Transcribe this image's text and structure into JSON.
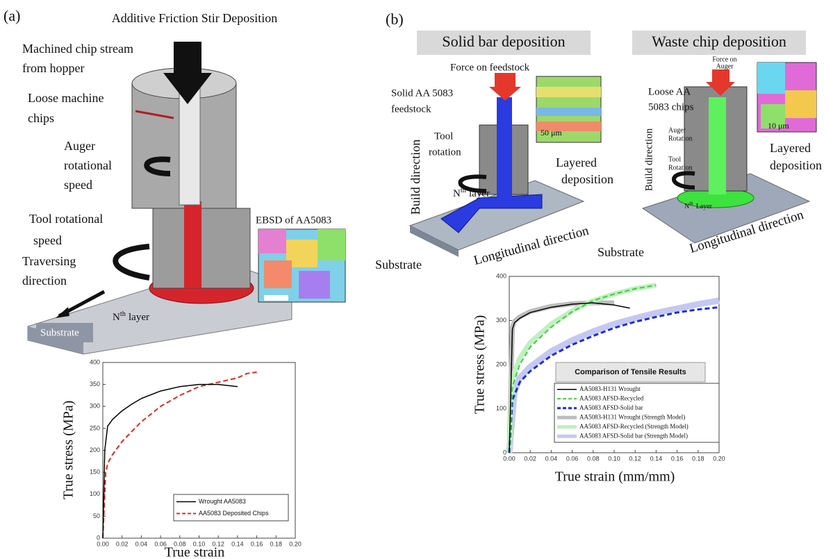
{
  "panel_a": {
    "label": "(a)",
    "title": "Additive Friction Stir Deposition",
    "chip_stream": [
      "Machined chip stream",
      "from hopper"
    ],
    "loose_chips": [
      "Loose machine",
      "chips"
    ],
    "auger_speed": [
      "Auger",
      "rotational",
      "speed"
    ],
    "tool_speed": [
      "Tool rotational",
      "speed"
    ],
    "traversing": [
      "Traversing",
      "direction"
    ],
    "substrate": "Substrate",
    "nth_layer": [
      "N",
      "th",
      "layer"
    ],
    "ebsd": "EBSD of AA5083"
  },
  "panel_b": {
    "label": "(b)",
    "solid_title": "Solid bar deposition",
    "waste_title": "Waste chip deposition",
    "force_feedstock": "Force on feedstock",
    "solid_feedstock": [
      "Solid AA 5083",
      "feedstock"
    ],
    "tool_rotation": [
      "Tool",
      "rotation"
    ],
    "build_direction_1": "Build direction",
    "nth_layer_1": [
      "N",
      "th",
      "layer"
    ],
    "layered_1": [
      "Layered",
      "deposition"
    ],
    "substrate_1": "Substrate",
    "longitudinal_1": "Longitudinal direction",
    "scale_1": "50 μm",
    "force_auger": [
      "Force on",
      "Auger"
    ],
    "loose_chips": [
      "Loose AA",
      "5083 chips"
    ],
    "auger_rotation": [
      "Auger",
      "Rotation"
    ],
    "tool_rotation_2": [
      "Tool",
      "Rotation"
    ],
    "build_direction_2": "Build direction",
    "layered_2": [
      "Layered",
      "deposition"
    ],
    "nth_layer_2": [
      "N",
      "th",
      "Layer"
    ],
    "substrate_2": "Substrate",
    "longitudinal_2": "Longitudinal direction",
    "scale_2": "10 μm"
  },
  "chart_data": [
    {
      "type": "line",
      "x_label": "True strain",
      "y_label": "True stress (MPa)",
      "xlim": [
        0,
        0.2
      ],
      "ylim": [
        0,
        400
      ],
      "xticks": [
        {
          "value": 0,
          "label": "0.00"
        },
        {
          "value": 0.02,
          "label": "0.02"
        },
        {
          "value": 0.04,
          "label": "0.04"
        },
        {
          "value": 0.06,
          "label": "0.06"
        },
        {
          "value": 0.08,
          "label": "0.08"
        },
        {
          "value": 0.1,
          "label": "0.10"
        },
        {
          "value": 0.12,
          "label": "0.12"
        },
        {
          "value": 0.14,
          "label": "0.14"
        },
        {
          "value": 0.16,
          "label": "0.16"
        },
        {
          "value": 0.18,
          "label": "0.18"
        },
        {
          "value": 0.2,
          "label": "0.20"
        }
      ],
      "yticks": [
        0,
        50,
        100,
        150,
        200,
        250,
        300,
        350,
        400
      ],
      "series": [
        {
          "name": "Wrought AA5083",
          "color": "#000000",
          "dashed": false,
          "line_width": 1.5,
          "x": [
            0,
            0.002,
            0.005,
            0.01,
            0.02,
            0.03,
            0.04,
            0.06,
            0.08,
            0.1,
            0.12,
            0.14
          ],
          "values": [
            0,
            200,
            255,
            270,
            290,
            305,
            318,
            335,
            345,
            350,
            350,
            345
          ]
        },
        {
          "name": "AA5083 Deposited Chips",
          "color": "#e8251f",
          "dashed": true,
          "line_width": 2,
          "x": [
            0,
            0.003,
            0.005,
            0.01,
            0.02,
            0.04,
            0.06,
            0.08,
            0.1,
            0.12,
            0.14,
            0.15,
            0.16
          ],
          "values": [
            0,
            150,
            170,
            190,
            220,
            265,
            300,
            325,
            345,
            355,
            365,
            375,
            378
          ]
        }
      ]
    },
    {
      "type": "line",
      "x_label": "True strain (mm/mm)",
      "y_label": "True stress (MPa)",
      "legend_title": "Comparison of Tensile Results",
      "xlim": [
        0,
        0.2
      ],
      "ylim": [
        0,
        400
      ],
      "xticks": [
        {
          "value": 0,
          "label": "0.00"
        },
        {
          "value": 0.02,
          "label": "0.02"
        },
        {
          "value": 0.04,
          "label": "0.04"
        },
        {
          "value": 0.06,
          "label": "0.06"
        },
        {
          "value": 0.08,
          "label": "0.08"
        },
        {
          "value": 0.1,
          "label": "0.10"
        },
        {
          "value": 0.12,
          "label": "0.12"
        },
        {
          "value": 0.14,
          "label": "0.14"
        },
        {
          "value": 0.16,
          "label": "0.16"
        },
        {
          "value": 0.18,
          "label": "0.18"
        },
        {
          "value": 0.2,
          "label": "0.20"
        }
      ],
      "yticks": [
        0,
        100,
        200,
        300,
        400
      ],
      "series": [
        {
          "name": "AA5083-H131 Wrought",
          "color": "#000000",
          "dashed": false,
          "line_width": 1.5,
          "x": [
            0,
            0.003,
            0.005,
            0.01,
            0.02,
            0.04,
            0.06,
            0.08,
            0.1,
            0.115
          ],
          "values": [
            0,
            280,
            295,
            305,
            318,
            330,
            337,
            340,
            335,
            328
          ]
        },
        {
          "name": "AA5083 AFSD-Recycled",
          "color": "#3ecb3e",
          "dashed": true,
          "line_width": 2,
          "x": [
            0,
            0.003,
            0.01,
            0.02,
            0.04,
            0.06,
            0.08,
            0.1,
            0.12,
            0.14
          ],
          "values": [
            0,
            150,
            200,
            240,
            285,
            320,
            345,
            360,
            372,
            380
          ]
        },
        {
          "name": "AA5083 AFSD-Solid bar",
          "color": "#1a2fd6",
          "dashed": true,
          "line_width": 3,
          "x": [
            0,
            0.003,
            0.01,
            0.02,
            0.04,
            0.06,
            0.08,
            0.1,
            0.12,
            0.14,
            0.16,
            0.18,
            0.2
          ],
          "values": [
            0,
            120,
            160,
            185,
            220,
            245,
            265,
            283,
            297,
            308,
            318,
            325,
            330
          ]
        },
        {
          "name": "AA5083-H131 Wrought (Strength Model)",
          "color": "#bdbdbd",
          "dashed": false,
          "line_width": 7,
          "x": [
            0,
            0.003,
            0.005,
            0.01,
            0.02,
            0.04,
            0.06,
            0.08,
            0.1
          ],
          "values": [
            0,
            285,
            298,
            308,
            320,
            332,
            338,
            340,
            340
          ]
        },
        {
          "name": "AA5083 AFSD-Recycled (Strength Model)",
          "color": "#bff0bf",
          "dashed": false,
          "line_width": 7,
          "x": [
            0,
            0.003,
            0.01,
            0.02,
            0.04,
            0.06,
            0.08,
            0.1,
            0.12,
            0.14
          ],
          "values": [
            0,
            170,
            215,
            250,
            292,
            322,
            345,
            360,
            372,
            380
          ]
        },
        {
          "name": "AA5083 AFSD-Solid bar (Strength Model)",
          "color": "#c6c8f2",
          "dashed": false,
          "line_width": 9,
          "x": [
            0,
            0.005,
            0.01,
            0.02,
            0.04,
            0.06,
            0.08,
            0.1,
            0.12,
            0.14,
            0.16,
            0.18,
            0.2
          ],
          "values": [
            0,
            140,
            170,
            195,
            230,
            255,
            275,
            292,
            305,
            317,
            327,
            337,
            345
          ]
        }
      ]
    }
  ]
}
